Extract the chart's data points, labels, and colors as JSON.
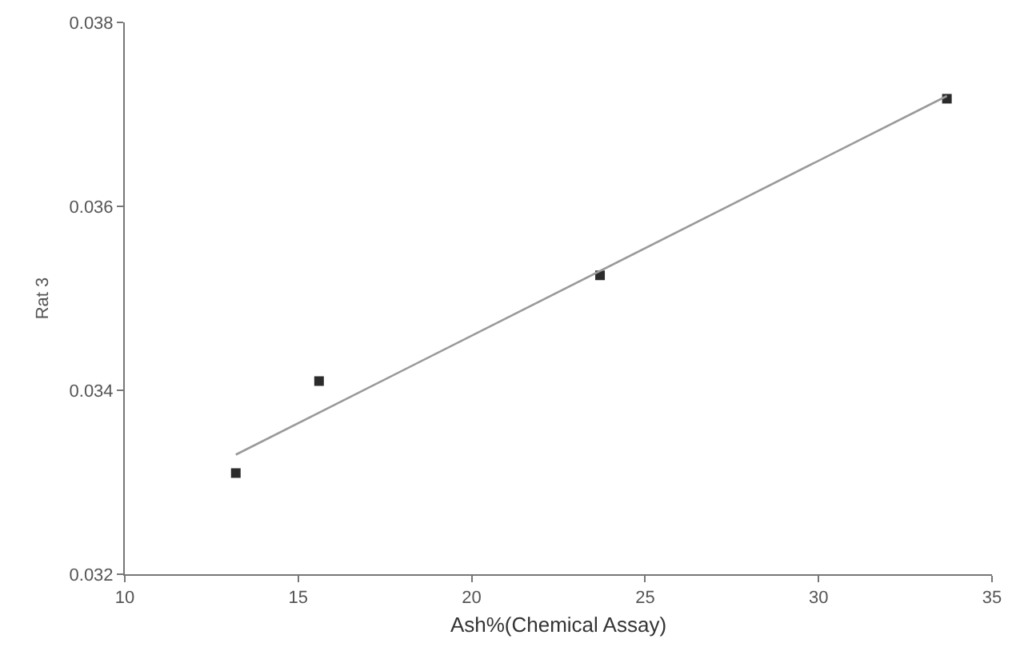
{
  "chart_data": {
    "type": "scatter",
    "xlabel": "Ash%(Chemical Assay)",
    "ylabel": "Rat 3",
    "xlim": [
      10,
      35
    ],
    "xticks": [
      10,
      15,
      20,
      25,
      30,
      35
    ],
    "ylim": [
      0.032,
      0.038
    ],
    "yticks": [
      0.032,
      0.034,
      0.036,
      0.038
    ],
    "grid": false,
    "series": [
      {
        "color": "#2b2b2b",
        "marker": "square",
        "x": [
          13.2,
          15.6,
          23.7,
          33.7
        ],
        "values": [
          0.0331,
          0.0341,
          0.03525,
          0.03717
        ]
      },
      {
        "type": "line",
        "color": "#9a9a9a",
        "marker": "none",
        "x": [
          13.2,
          33.7
        ],
        "values": [
          0.0333,
          0.0372
        ]
      }
    ]
  }
}
